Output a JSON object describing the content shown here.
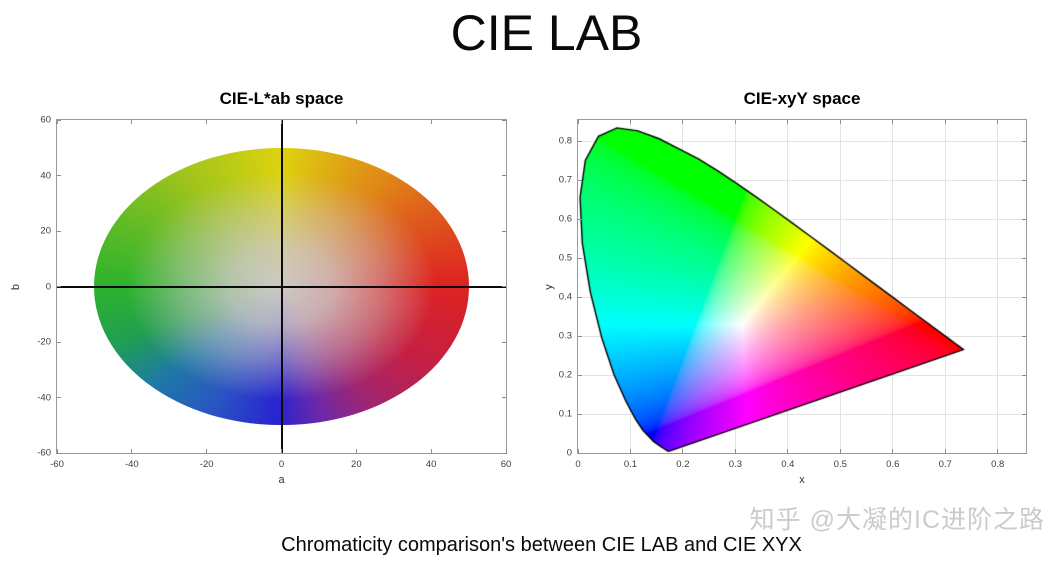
{
  "page": {
    "title": "CIE LAB",
    "caption": "Chromaticity comparison's between CIE LAB and CIE XYX",
    "watermark": "知乎 @大凝的IC进阶之路",
    "background": "#ffffff"
  },
  "chart_data": [
    {
      "id": "lab",
      "type": "heatmap",
      "title": "CIE-L*ab space",
      "xlabel": "a",
      "ylabel": "b",
      "xlim": [
        -60,
        60
      ],
      "ylim": [
        -60,
        60
      ],
      "xticks": [
        -60,
        -40,
        -20,
        0,
        20,
        40,
        60
      ],
      "yticks": [
        -60,
        -40,
        -20,
        0,
        20,
        40,
        60
      ],
      "grid": false,
      "description": "CIELAB a*-b* chromatic plane shown as a color-filled ellipse of radius 50 centered at the origin; hue varies with angle, colors desaturate to gray toward the center; black axis lines cross at a=0, b=0",
      "ellipse_radius": 50,
      "axis_cross_color": "#0b0b0b",
      "center_color": "#cdc9c4",
      "rim_stops": [
        [
          0,
          "#ddd30e"
        ],
        [
          45,
          "#e08518"
        ],
        [
          90,
          "#dd2222"
        ],
        [
          118,
          "#c41f44"
        ],
        [
          142,
          "#a3256e"
        ],
        [
          162,
          "#6f29a6"
        ],
        [
          182,
          "#2824cf"
        ],
        [
          208,
          "#2a52c4"
        ],
        [
          232,
          "#1e78a8"
        ],
        [
          252,
          "#21a04e"
        ],
        [
          270,
          "#2db32d"
        ],
        [
          318,
          "#9fc41c"
        ],
        [
          360,
          "#ddd30e"
        ]
      ]
    },
    {
      "id": "xyy",
      "type": "heatmap",
      "title": "CIE-xyY space",
      "xlabel": "x",
      "ylabel": "y",
      "xlim": [
        0,
        0.854
      ],
      "ylim": [
        0,
        0.854
      ],
      "xticks": [
        0,
        0.1,
        0.2,
        0.3,
        0.4,
        0.5,
        0.6,
        0.7,
        0.8
      ],
      "yticks": [
        0,
        0.1,
        0.2,
        0.3,
        0.4,
        0.5,
        0.6,
        0.7,
        0.8
      ],
      "grid": true,
      "grid_color": "#e3e3e3",
      "description": "CIE 1931 xy chromaticity diagram: horseshoe-shaped spectral locus filled with normalized sRGB colors, outlined in black, over a light gray grid",
      "locus_outline_color": "#000000",
      "spectral_locus": [
        [
          0.1741,
          0.005
        ],
        [
          0.1733,
          0.0048
        ],
        [
          0.1714,
          0.0051
        ],
        [
          0.1689,
          0.0069
        ],
        [
          0.1644,
          0.0109
        ],
        [
          0.1566,
          0.0177
        ],
        [
          0.144,
          0.0297
        ],
        [
          0.1241,
          0.0578
        ],
        [
          0.1096,
          0.0868
        ],
        [
          0.0913,
          0.1327
        ],
        [
          0.0687,
          0.2007
        ],
        [
          0.0454,
          0.295
        ],
        [
          0.0235,
          0.4127
        ],
        [
          0.0082,
          0.5384
        ],
        [
          0.0039,
          0.6548
        ],
        [
          0.0139,
          0.7502
        ],
        [
          0.0389,
          0.812
        ],
        [
          0.0743,
          0.8338
        ],
        [
          0.1142,
          0.8262
        ],
        [
          0.1547,
          0.8059
        ],
        [
          0.1896,
          0.7816
        ],
        [
          0.2296,
          0.7543
        ],
        [
          0.2658,
          0.7243
        ],
        [
          0.3016,
          0.6923
        ],
        [
          0.3373,
          0.6589
        ],
        [
          0.3731,
          0.6245
        ],
        [
          0.4087,
          0.5896
        ],
        [
          0.4441,
          0.5547
        ],
        [
          0.4788,
          0.5202
        ],
        [
          0.5125,
          0.4866
        ],
        [
          0.5448,
          0.4544
        ],
        [
          0.5752,
          0.4242
        ],
        [
          0.6029,
          0.3965
        ],
        [
          0.627,
          0.3725
        ],
        [
          0.6482,
          0.3514
        ],
        [
          0.6658,
          0.334
        ],
        [
          0.6915,
          0.3083
        ],
        [
          0.7079,
          0.292
        ],
        [
          0.719,
          0.2809
        ],
        [
          0.726,
          0.274
        ],
        [
          0.7334,
          0.2666
        ],
        [
          0.7347,
          0.2653
        ]
      ]
    }
  ]
}
